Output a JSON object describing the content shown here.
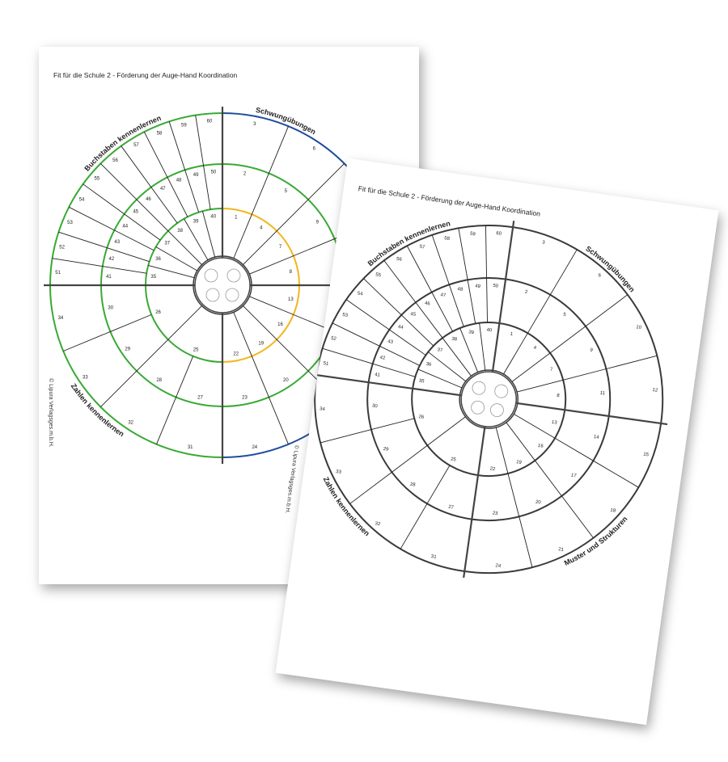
{
  "title": "Fit für die Schule 2 - Förderung der Auge-Hand Koordination",
  "copyright": "© Lipura Verlagsges.m.b.H.",
  "sections": {
    "top_left": "Buchstaben kennenlernen",
    "top_right": "Schwungübungen",
    "bottom_left": "Zahlen kennenlernen",
    "bottom_right": "Muster und Strukturen"
  },
  "quadrants": [
    {
      "inner": [
        "1",
        "4",
        "7",
        "8"
      ],
      "middle": [
        "2",
        "5",
        "9",
        "11"
      ],
      "outer": [
        "3",
        "6",
        "10",
        "12"
      ]
    },
    {
      "inner": [
        "13",
        "16",
        "19",
        "22"
      ],
      "middle": [
        "14",
        "17",
        "20",
        "23"
      ],
      "outer": [
        "15",
        "18",
        "21",
        "24"
      ]
    },
    {
      "inner": [
        "25",
        "26"
      ],
      "middle": [
        "27",
        "28",
        "29",
        "30"
      ],
      "outer": [
        "31",
        "32",
        "33",
        "34"
      ]
    },
    {
      "inner": [
        "35",
        "36",
        "37",
        "38",
        "39",
        "40"
      ],
      "middle": [
        "41",
        "42",
        "43",
        "44",
        "45",
        "46",
        "47",
        "48",
        "49",
        "50"
      ],
      "outer": [
        "51",
        "52",
        "53",
        "54",
        "55",
        "56",
        "57",
        "58",
        "59",
        "60"
      ]
    }
  ],
  "colors": {
    "line": "#3a3a3a",
    "green": "#3aa935",
    "orange": "#f2b61c",
    "blue": "#1f4e9c"
  }
}
